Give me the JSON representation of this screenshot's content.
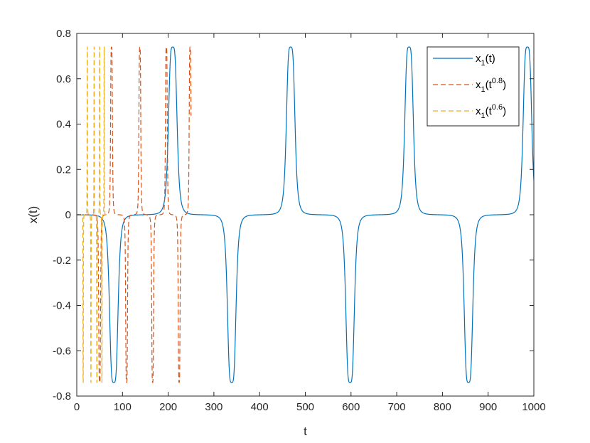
{
  "chart_data": {
    "type": "line",
    "xlabel": "t",
    "ylabel": "x(t)",
    "xlim": [
      0,
      1000
    ],
    "ylim": [
      -0.8,
      0.8
    ],
    "xticks": [
      "0",
      "100",
      "200",
      "300",
      "400",
      "500",
      "600",
      "700",
      "800",
      "900",
      "1000"
    ],
    "yticks": [
      "-0.8",
      "-0.6",
      "-0.4",
      "-0.2",
      "0",
      "0.2",
      "0.4",
      "0.6",
      "0.8"
    ],
    "grid": false,
    "legend_position": "top-right",
    "amplitude": 0.74,
    "series": [
      {
        "name": "x1(t)",
        "legend": {
          "base": "x",
          "sub": "1",
          "open": "(t",
          "sup": "",
          "close": ")"
        },
        "color": "#0072BD",
        "style": "solid",
        "x_end": 1000,
        "peaks_t": [
          81,
          210,
          339,
          468,
          598,
          727,
          857,
          986
        ],
        "peak_signs": [
          -1,
          1,
          -1,
          1,
          -1,
          1,
          -1,
          1
        ]
      },
      {
        "name": "x1(t^0.8)",
        "legend": {
          "base": "x",
          "sub": "1",
          "open": "(t",
          "sup": "0.8",
          "close": ")"
        },
        "color": "#D95319",
        "style": "dashed",
        "x_end": 250,
        "peaks_t": [
          50,
          76,
          109,
          138,
          166,
          196,
          224,
          248
        ],
        "peak_signs": [
          -1,
          1,
          -1,
          1,
          -1,
          1,
          -1,
          1
        ]
      },
      {
        "name": "x1(t^0.6)",
        "legend": {
          "base": "x",
          "sub": "1",
          "open": "(t",
          "sup": "0.6",
          "close": ")"
        },
        "color": "#EDB120",
        "style": "dashed",
        "x_end": 65,
        "peaks_t": [
          14,
          23,
          31,
          38,
          44,
          50,
          55,
          60
        ],
        "peak_signs": [
          -1,
          1,
          -1,
          1,
          -1,
          1,
          -1,
          1
        ]
      }
    ]
  }
}
